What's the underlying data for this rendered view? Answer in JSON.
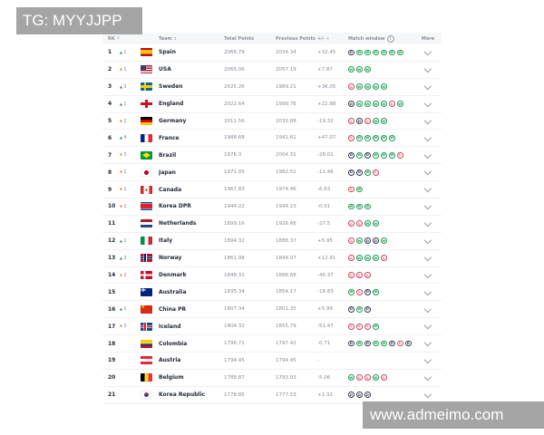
{
  "banners": {
    "top": "TG: MYYJJPP",
    "bottom": "www.admeimo.com"
  },
  "table": {
    "headers": {
      "rank": "RK",
      "team": "Team",
      "total": "Total Points",
      "previous": "Previous Points",
      "change": "+/-",
      "window": "Match window",
      "more": "More"
    },
    "sort_icon": "↕",
    "info_icon": "i",
    "move_icons": {
      "up": "▲",
      "down": "▼",
      "none": "-"
    },
    "colors": {
      "win": "#1f9d58",
      "draw": "#323a4d",
      "loss": "#d3405c",
      "up": "#2f7d46",
      "down": "#e2794e"
    },
    "rows": [
      {
        "rank": "1",
        "move": {
          "dir": "up",
          "n": "1"
        },
        "cc": "es",
        "team": "Spain",
        "total": "2066.79",
        "prev": "2034.34",
        "change": "+32.45",
        "window": [
          "D",
          "W",
          "W",
          "W",
          "W",
          "W",
          "W"
        ]
      },
      {
        "rank": "2",
        "move": {
          "dir": "down",
          "n": "1"
        },
        "cc": "us",
        "team": "USA",
        "total": "2065.06",
        "prev": "2057.19",
        "change": "+7.87",
        "window": [
          "W",
          "W",
          "W"
        ]
      },
      {
        "rank": "3",
        "move": {
          "dir": "up",
          "n": "3"
        },
        "cc": "se",
        "team": "Sweden",
        "total": "2025.26",
        "prev": "1989.21",
        "change": "+36.05",
        "window": [
          "L",
          "W",
          "W",
          "W",
          "W"
        ]
      },
      {
        "rank": "4",
        "move": {
          "dir": "up",
          "n": "1"
        },
        "cc": "en",
        "team": "England",
        "total": "2022.64",
        "prev": "1999.76",
        "change": "+22.88",
        "window": [
          "D",
          "W",
          "W",
          "W",
          "W",
          "L",
          "W"
        ]
      },
      {
        "rank": "5",
        "move": {
          "dir": "down",
          "n": "2"
        },
        "cc": "de",
        "team": "Germany",
        "total": "2011.56",
        "prev": "2030.88",
        "change": "-19.32",
        "window": [
          "L",
          "D",
          "L",
          "W",
          "W"
        ]
      },
      {
        "rank": "6",
        "move": {
          "dir": "up",
          "n": "4"
        },
        "cc": "fr",
        "team": "France",
        "total": "1988.68",
        "prev": "1941.61",
        "change": "+47.07",
        "window": [
          "L",
          "W",
          "W",
          "W",
          "W",
          "W"
        ]
      },
      {
        "rank": "7",
        "move": {
          "dir": "down",
          "n": "3"
        },
        "cc": "br",
        "team": "Brazil",
        "total": "1976.3",
        "prev": "2004.31",
        "change": "-28.01",
        "window": [
          "D",
          "W",
          "D",
          "W",
          "W",
          "W",
          "L"
        ]
      },
      {
        "rank": "8",
        "move": {
          "dir": "down",
          "n": "1"
        },
        "cc": "jp",
        "team": "Japan",
        "total": "1971.05",
        "prev": "1982.51",
        "change": "-11.46",
        "window": [
          "D",
          "D",
          "W",
          "L"
        ]
      },
      {
        "rank": "9",
        "move": {
          "dir": "down",
          "n": "1"
        },
        "cc": "ca",
        "team": "Canada",
        "total": "1967.83",
        "prev": "1974.46",
        "change": "-6.63",
        "window": [
          "L",
          "W"
        ]
      },
      {
        "rank": "10",
        "move": {
          "dir": "down",
          "n": "1"
        },
        "cc": "kp",
        "team": "Korea DPR",
        "total": "1944.22",
        "prev": "1944.23",
        "change": "-0.01",
        "window": [
          "W",
          "W",
          "W"
        ]
      },
      {
        "rank": "11",
        "move": {
          "dir": "none",
          "n": ""
        },
        "cc": "nl",
        "team": "Netherlands",
        "total": "1899.16",
        "prev": "1926.66",
        "change": "-27.5",
        "window": [
          "L",
          "L",
          "W",
          "W"
        ]
      },
      {
        "rank": "12",
        "move": {
          "dir": "up",
          "n": "1"
        },
        "cc": "it",
        "team": "Italy",
        "total": "1894.32",
        "prev": "1888.37",
        "change": "+5.95",
        "window": [
          "L",
          "W",
          "D",
          "D",
          "W"
        ]
      },
      {
        "rank": "13",
        "move": {
          "dir": "up",
          "n": "3"
        },
        "cc": "no",
        "team": "Norway",
        "total": "1861.98",
        "prev": "1849.07",
        "change": "+12.91",
        "window": [
          "L",
          "W",
          "W",
          "W",
          "L"
        ]
      },
      {
        "rank": "14",
        "move": {
          "dir": "down",
          "n": "2"
        },
        "cc": "dk",
        "team": "Denmark",
        "total": "1848.31",
        "prev": "1888.68",
        "change": "-40.37",
        "window": [
          "L",
          "L",
          "L"
        ]
      },
      {
        "rank": "15",
        "move": {
          "dir": "none",
          "n": ""
        },
        "cc": "au",
        "team": "Australia",
        "total": "1835.34",
        "prev": "1854.17",
        "change": "-18.83",
        "window": [
          "W",
          "L",
          "D",
          "W"
        ]
      },
      {
        "rank": "16",
        "move": {
          "dir": "up",
          "n": "1"
        },
        "cc": "cn",
        "team": "China PR",
        "total": "1807.34",
        "prev": "1801.35",
        "change": "+5.99",
        "window": [
          "D",
          "W",
          "D"
        ]
      },
      {
        "rank": "17",
        "move": {
          "dir": "down",
          "n": "3"
        },
        "cc": "is",
        "team": "Iceland",
        "total": "1804.32",
        "prev": "1855.79",
        "change": "-51.47",
        "window": [
          "L",
          "L",
          "L",
          "W"
        ]
      },
      {
        "rank": "18",
        "move": {
          "dir": "none",
          "n": ""
        },
        "cc": "co",
        "team": "Colombia",
        "total": "1796.71",
        "prev": "1797.42",
        "change": "-0.71",
        "window": [
          "D",
          "W",
          "D",
          "W",
          "W",
          "D",
          "L",
          "D"
        ]
      },
      {
        "rank": "19",
        "move": {
          "dir": "none",
          "n": ""
        },
        "cc": "at",
        "team": "Austria",
        "total": "1794.45",
        "prev": "1794.45",
        "change": "-",
        "window": []
      },
      {
        "rank": "20",
        "move": {
          "dir": "none",
          "n": ""
        },
        "cc": "be",
        "team": "Belgium",
        "total": "1788.87",
        "prev": "1793.93",
        "change": "-5.06",
        "window": [
          "W",
          "L",
          "L",
          "W",
          "L"
        ]
      },
      {
        "rank": "21",
        "move": {
          "dir": "none",
          "n": ""
        },
        "cc": "kr",
        "team": "Korea Republic",
        "total": "1778.85",
        "prev": "1777.53",
        "change": "+1.32",
        "window": [
          "D",
          "D",
          "D"
        ]
      }
    ]
  }
}
